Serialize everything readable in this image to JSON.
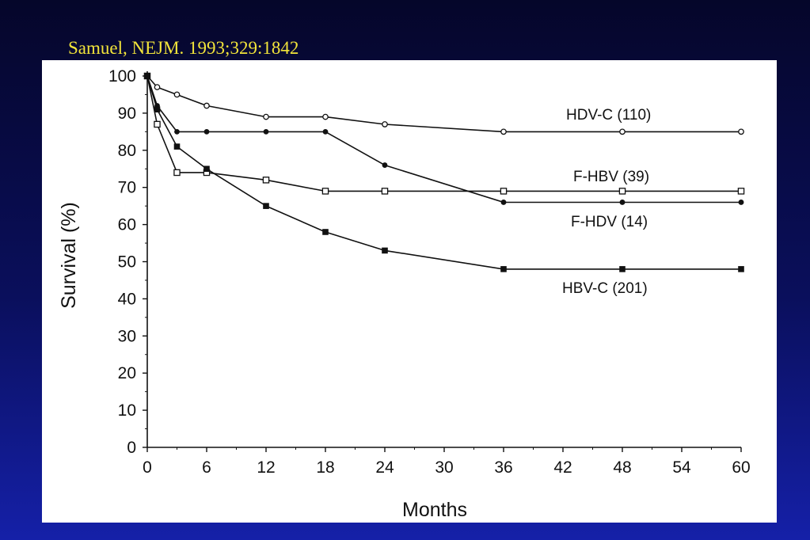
{
  "citation": "Samuel, NEJM. 1993;329:1842",
  "chart_data": {
    "type": "line",
    "title": "",
    "xlabel": "Months",
    "ylabel": "Survival (%)",
    "xlim": [
      0,
      60
    ],
    "ylim": [
      0,
      100
    ],
    "x_ticks": [
      0,
      6,
      12,
      18,
      24,
      30,
      36,
      42,
      48,
      54,
      60
    ],
    "y_ticks": [
      0,
      10,
      20,
      30,
      40,
      50,
      60,
      70,
      80,
      90,
      100
    ],
    "grid": false,
    "legend": "none",
    "series": [
      {
        "name": "HDV-C (110)",
        "marker": "open-circle",
        "points": [
          [
            0,
            100
          ],
          [
            1,
            97
          ],
          [
            3,
            95
          ],
          [
            6,
            92
          ],
          [
            12,
            89
          ],
          [
            18,
            89
          ],
          [
            24,
            87
          ],
          [
            36,
            85
          ],
          [
            48,
            85
          ],
          [
            60,
            85
          ]
        ]
      },
      {
        "name": "F-HBV (39)",
        "marker": "open-square",
        "points": [
          [
            0,
            100
          ],
          [
            1,
            87
          ],
          [
            3,
            74
          ],
          [
            6,
            74
          ],
          [
            12,
            72
          ],
          [
            18,
            69
          ],
          [
            24,
            69
          ],
          [
            36,
            69
          ],
          [
            48,
            69
          ],
          [
            60,
            69
          ]
        ]
      },
      {
        "name": "F-HDV (14)",
        "marker": "filled-circle",
        "points": [
          [
            0,
            100
          ],
          [
            1,
            92
          ],
          [
            3,
            85
          ],
          [
            6,
            85
          ],
          [
            12,
            85
          ],
          [
            18,
            85
          ],
          [
            24,
            76
          ],
          [
            36,
            66
          ],
          [
            48,
            66
          ],
          [
            60,
            66
          ]
        ]
      },
      {
        "name": "HBV-C (201)",
        "marker": "filled-square",
        "points": [
          [
            0,
            100
          ],
          [
            1,
            91
          ],
          [
            3,
            81
          ],
          [
            6,
            75
          ],
          [
            12,
            65
          ],
          [
            18,
            58
          ],
          [
            24,
            53
          ],
          [
            36,
            48
          ],
          [
            48,
            48
          ],
          [
            60,
            48
          ]
        ]
      }
    ]
  }
}
